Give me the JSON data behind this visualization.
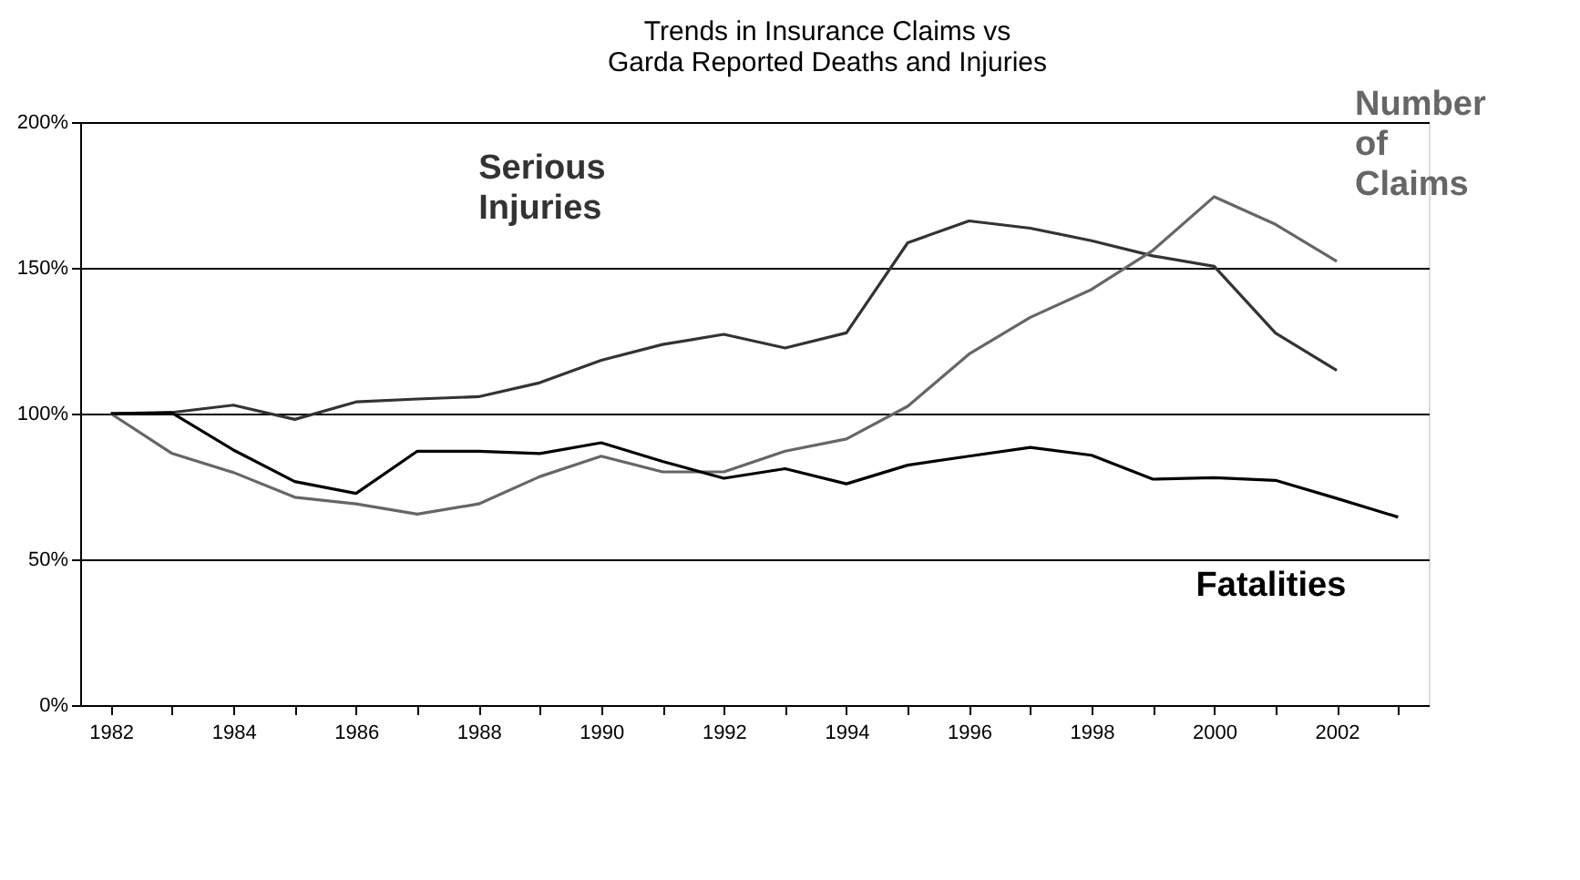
{
  "chart_data": {
    "type": "line",
    "title": [
      "Trends in Insurance Claims vs",
      "Garda Reported Deaths and Injuries"
    ],
    "categories": [
      "1982",
      null,
      "1984",
      null,
      "1986",
      null,
      "1988",
      null,
      "1990",
      null,
      "1992",
      null,
      "1994",
      null,
      "1996",
      null,
      "1998",
      null,
      "2000",
      null,
      "2002",
      null
    ],
    "series": [
      {
        "name": "Serious Injuries",
        "color": "#333333",
        "values": [
          100,
          100.4,
          102.9,
          98,
          104,
          105,
          105.8,
          110.6,
          118.3,
          123.7,
          127.2,
          122.5,
          127.7,
          158.6,
          166.1,
          163.6,
          159.3,
          154.1,
          150.5,
          127.6,
          114.8,
          null
        ]
      },
      {
        "name": "Number of Claims",
        "color": "#666666",
        "values": [
          100,
          86.3,
          79.8,
          71.3,
          69,
          65.5,
          69,
          78.4,
          85.4,
          80,
          80,
          87.1,
          91.3,
          102.5,
          120.4,
          133,
          142.6,
          156,
          174.4,
          164.9,
          152.2,
          null
        ]
      },
      {
        "name": "Fatalities",
        "color": "#000000",
        "values": [
          100,
          100.2,
          87.5,
          76.7,
          72.6,
          87.1,
          87.1,
          86.3,
          90,
          83.6,
          77.8,
          81.1,
          75.9,
          82.3,
          85.4,
          88.4,
          85.7,
          77.5,
          78,
          77.1,
          70.9,
          64.5
        ]
      }
    ],
    "ylim": [
      0,
      200
    ],
    "yticks": [
      {
        "value": 0,
        "label": "0%"
      },
      {
        "value": 50,
        "label": "50%"
      },
      {
        "value": 100,
        "label": "100%"
      },
      {
        "value": 150,
        "label": "150%"
      },
      {
        "value": 200,
        "label": "200%"
      }
    ],
    "grid": "y",
    "legend": false,
    "line_style": "solid"
  }
}
